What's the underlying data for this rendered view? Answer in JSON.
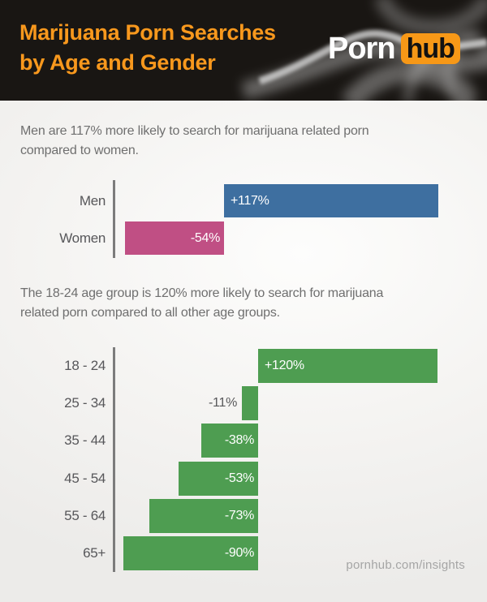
{
  "header": {
    "title_line1": "Marijuana Porn Searches",
    "title_line2": "by Age and Gender",
    "logo": {
      "porn": "Porn",
      "hub": "hub"
    },
    "title_color": "#f8981d",
    "logo_orange": "#f79817",
    "background": "#191613"
  },
  "intro_gender": {
    "line1": "Men are 117% more likely to search for marijuana related porn",
    "line2": "compared to women."
  },
  "intro_age": {
    "line1": "The 18-24 age group is 120% more likely to search for marijuana",
    "line2": "related porn compared to all other age groups."
  },
  "footer": {
    "site": "pornhub.com/insights"
  },
  "colors": {
    "men_bar": "#3e6fa0",
    "women_bar": "#c04f84",
    "age_bar": "#4e9d51",
    "axis": "#7c7c7c",
    "body_text": "#6f6f6f",
    "category_text": "#57575a",
    "value_text_inside": "#ffffff"
  },
  "chart_data": [
    {
      "type": "bar",
      "orientation": "horizontal",
      "title": "Marijuana porn search likelihood by gender (relative)",
      "categories": [
        "Men",
        "Women"
      ],
      "values": [
        117,
        -54
      ],
      "value_labels": [
        "+117%",
        "-54%"
      ],
      "bar_colors": [
        "#3e6fa0",
        "#c04f84"
      ],
      "unit": "%",
      "baseline": 0,
      "xlim": [
        -60,
        130
      ],
      "grid": false,
      "legend": "none"
    },
    {
      "type": "bar",
      "orientation": "horizontal",
      "title": "Marijuana porn search likelihood by age group (relative)",
      "categories": [
        "18 - 24",
        "25 - 34",
        "35 - 44",
        "45 - 54",
        "55 - 64",
        "65+"
      ],
      "values": [
        120,
        -11,
        -38,
        -53,
        -73,
        -90
      ],
      "value_labels": [
        "+120%",
        "-11%",
        "-38%",
        "-53%",
        "-73%",
        "-90%"
      ],
      "bar_color": "#4e9d51",
      "unit": "%",
      "baseline": 0,
      "xlim": [
        -100,
        130
      ],
      "grid": false,
      "legend": "none"
    }
  ]
}
